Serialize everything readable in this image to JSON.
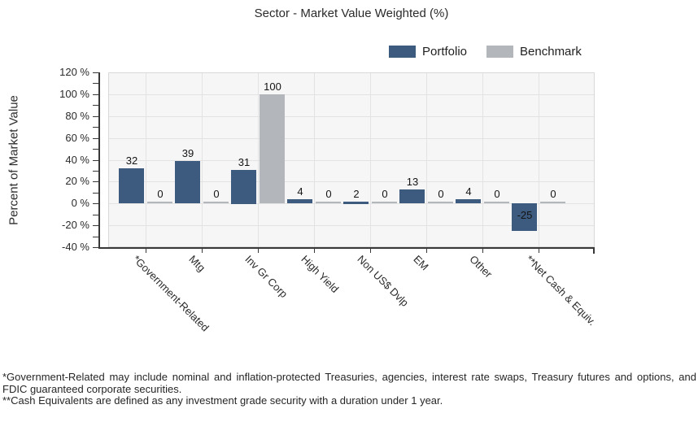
{
  "chart_data": {
    "type": "bar",
    "title": "Sector - Market Value Weighted (%)",
    "ylabel": "Percent of Market Value",
    "categories": [
      "*Government-Related",
      "Mtg",
      "Inv Gr Corp",
      "High Yield",
      "Non US$ Dvlp",
      "EM",
      "Other",
      "**Net Cash & Equiv."
    ],
    "series": [
      {
        "name": "Portfolio",
        "color": "#3D5A7F",
        "values": [
          32,
          39,
          31,
          4,
          2,
          13,
          4,
          -25
        ]
      },
      {
        "name": "Benchmark",
        "color": "#B3B7BC",
        "values": [
          0,
          0,
          100,
          0,
          0,
          0,
          0,
          0
        ]
      }
    ],
    "ylim": [
      -40,
      120
    ],
    "yticks": [
      120,
      100,
      80,
      60,
      40,
      20,
      0,
      -20,
      -40
    ],
    "ytick_suffix": " %",
    "ytick_minor_step": 10,
    "grid": true,
    "legend_position": "top-right",
    "bar_value_labels": true
  },
  "legend": {
    "items": [
      {
        "label": "Portfolio",
        "color": "#3D5A7F"
      },
      {
        "label": "Benchmark",
        "color": "#B3B7BC"
      }
    ]
  },
  "footnotes": [
    "*Government-Related may include nominal and inflation-protected Treasuries, agencies, interest rate swaps, Treasury futures and options, and FDIC guaranteed corporate securities.",
    "**Cash Equivalents are defined as any investment grade security with a duration under 1 year."
  ],
  "colors": {
    "axis": "#383838",
    "grid": "#e3e3e3",
    "plot_bg": "#f6f6f6",
    "plot_border": "#d9d9d9",
    "value_label_text": "#141414"
  }
}
